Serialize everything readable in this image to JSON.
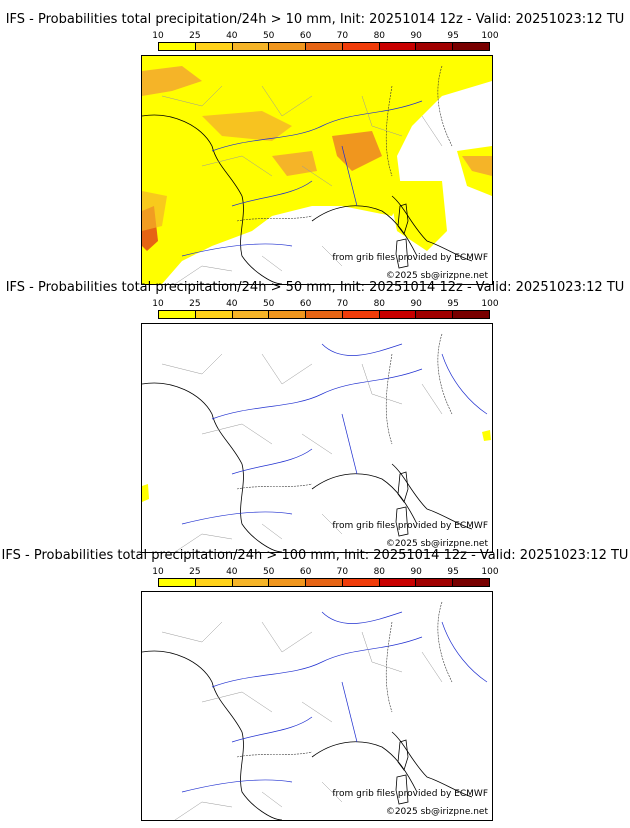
{
  "colorbar": {
    "labels": [
      "10",
      "25",
      "40",
      "50",
      "60",
      "70",
      "80",
      "90",
      "95",
      "100"
    ],
    "colors": [
      "#ffff00",
      "#ffd21a",
      "#f5b428",
      "#f0961e",
      "#e66414",
      "#f03c0a",
      "#c80000",
      "#a00000",
      "#780000"
    ]
  },
  "panels": [
    {
      "title": "IFS - Probabilities total precipitation/24h > 10 mm, Init: 20251014 12z - Valid: 20251023:12 TU",
      "source": "from grib files provided by ECMWF",
      "copyright": "©2025 sb@irizpne.net"
    },
    {
      "title": "IFS - Probabilities total precipitation/24h > 50 mm, Init: 20251014 12z - Valid: 20251023:12 TU",
      "source": "from grib files provided by ECMWF",
      "copyright": "©2025 sb@irizpne.net"
    },
    {
      "title": "IFS - Probabilities total precipitation/24h > 100 mm, Init: 20251014 12z - Valid: 20251023:12 TU",
      "source": "from grib files provided by ECMWF",
      "copyright": "©2025 sb@irizpne.net"
    }
  ]
}
